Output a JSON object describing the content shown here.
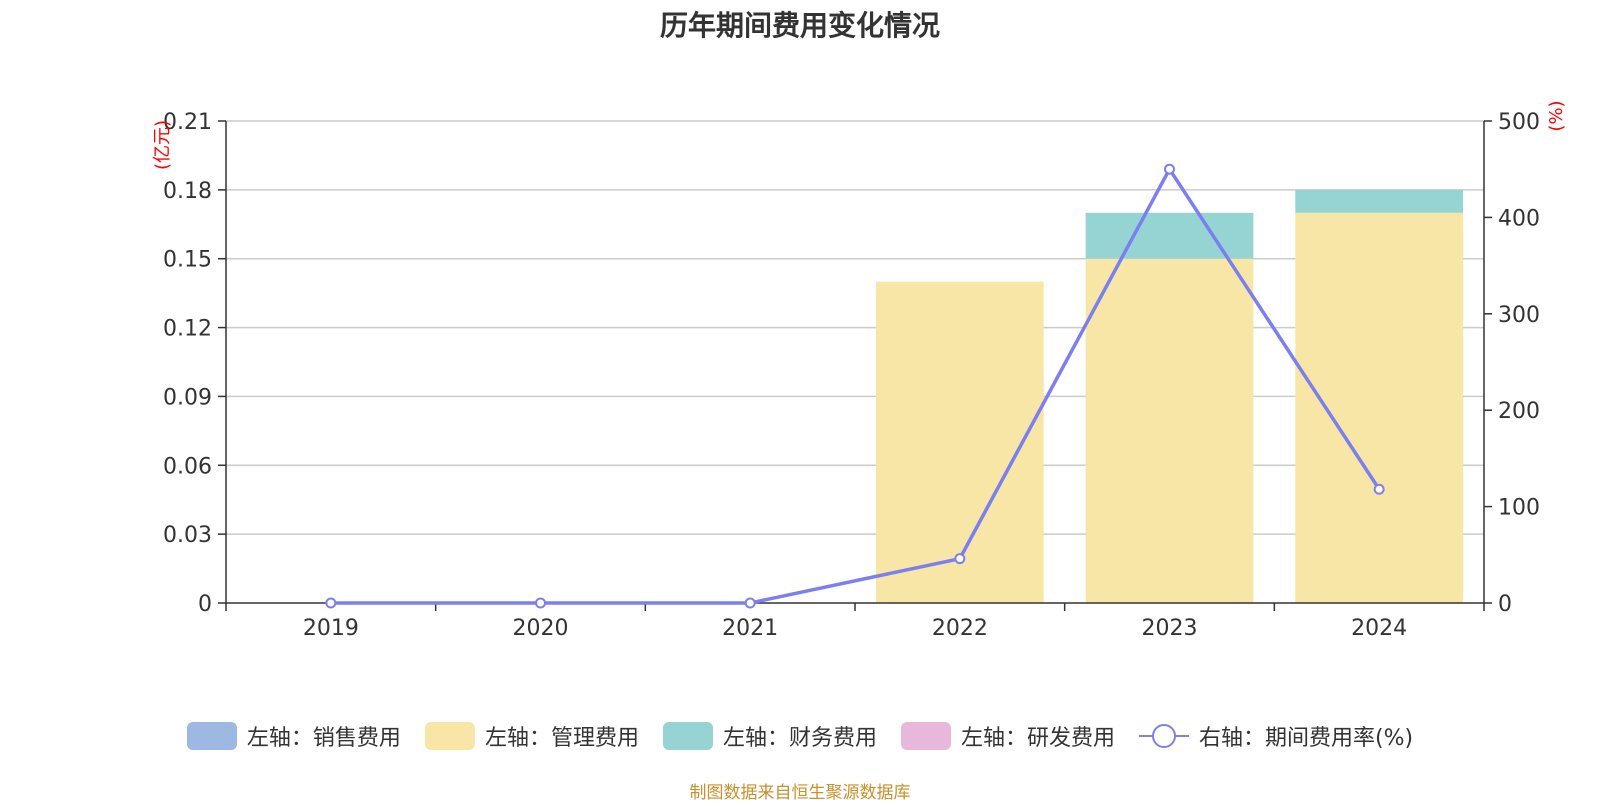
{
  "chart_data": {
    "type": "bar",
    "title": "历年期间费用变化情况",
    "categories": [
      "2019",
      "2020",
      "2021",
      "2022",
      "2023",
      "2024"
    ],
    "stacked": true,
    "left_axis": {
      "unit_label": "(亿元)",
      "ylim": [
        0,
        0.21
      ],
      "ticks": [
        "0",
        "0.03",
        "0.06",
        "0.09",
        "0.12",
        "0.15",
        "0.18",
        "0.21"
      ]
    },
    "right_axis": {
      "unit_label": "(%)",
      "ylim": [
        0,
        500
      ],
      "ticks": [
        "0",
        "100",
        "200",
        "300",
        "400",
        "500"
      ]
    },
    "series": [
      {
        "name": "左轴：销售费用",
        "type": "bar",
        "axis": "left",
        "color": "#9db8e3",
        "values": [
          0,
          0,
          0,
          0,
          0,
          0
        ]
      },
      {
        "name": "左轴：管理费用",
        "type": "bar",
        "axis": "left",
        "color": "#f7e6a6",
        "values": [
          0,
          0,
          0,
          0.14,
          0.15,
          0.17
        ]
      },
      {
        "name": "左轴：财务费用",
        "type": "bar",
        "axis": "left",
        "color": "#96d4d4",
        "values": [
          0,
          0,
          0,
          0,
          0.02,
          0.01
        ]
      },
      {
        "name": "左轴：研发费用",
        "type": "bar",
        "axis": "left",
        "color": "#e8b8da",
        "values": [
          0,
          0,
          0,
          0,
          0,
          0
        ]
      },
      {
        "name": "右轴：期间费用率(%)",
        "type": "line",
        "axis": "right",
        "color": "#7b7ff0",
        "values": [
          0,
          0,
          0,
          46,
          450,
          118
        ]
      }
    ],
    "grid": true,
    "legend_position": "bottom"
  },
  "source_text": "制图数据来自恒生聚源数据库"
}
